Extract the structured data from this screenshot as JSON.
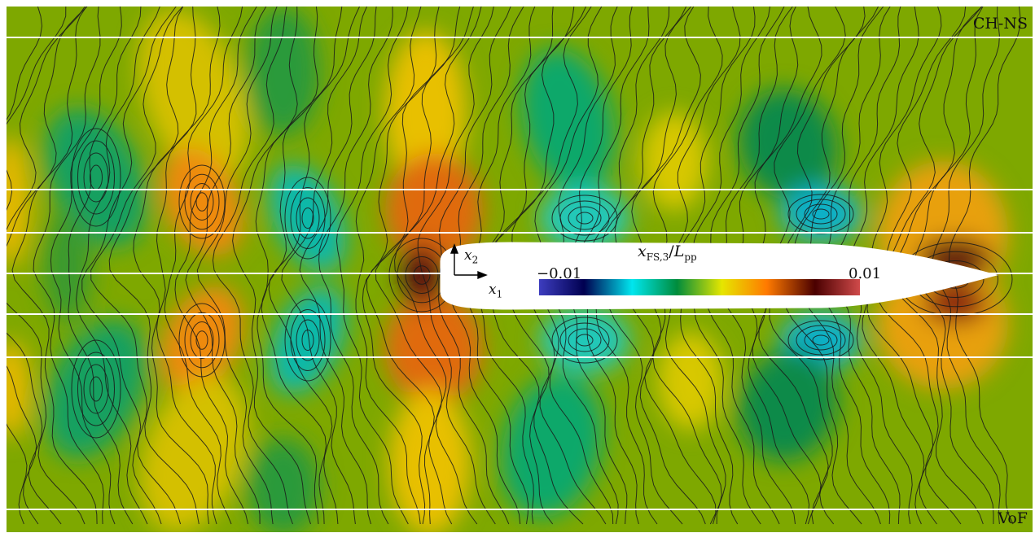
{
  "panel_labels": {
    "top": "CH-NS",
    "bottom": "VoF"
  },
  "axes_labels": {
    "x1": "x",
    "x1_sub": "1",
    "x2": "x",
    "x2_sub": "2"
  },
  "colorbar": {
    "title_var": "x",
    "title_sub": "FS,3",
    "title_div": "/",
    "title_L": "L",
    "title_L_sub": "pp",
    "min_label": "−0.01",
    "max_label": "0.01",
    "stops": [
      "#3d3dbf",
      "#000050",
      "#00e6ee",
      "#008c3c",
      "#e6e600",
      "#ff7a00",
      "#4a0000",
      "#d04a4a"
    ]
  },
  "chart_data": {
    "type": "heatmap",
    "quantity": "x_FS,3 / L_pp",
    "colorbar_range": [
      -0.01,
      0.01
    ],
    "upper_half": "CH-NS",
    "lower_half": "VoF",
    "colors": {
      "background": "#7ea800",
      "hull": "#ffffff",
      "contour": "#1a1a1a",
      "reference_lines": "#ffffff"
    }
  }
}
